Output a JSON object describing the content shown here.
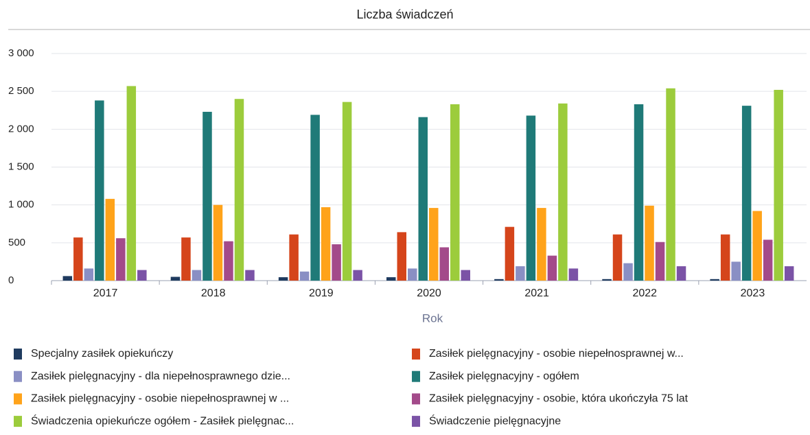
{
  "chart_data": {
    "type": "bar",
    "title": "Liczba świadczeń",
    "x_label": "Rok",
    "categories": [
      "2017",
      "2018",
      "2019",
      "2020",
      "2021",
      "2022",
      "2023"
    ],
    "series": [
      {
        "name": "Specjalny zasiłek opiekuńczy",
        "color": "#1f3b5f",
        "values": [
          60,
          50,
          45,
          45,
          20,
          20,
          20
        ]
      },
      {
        "name": "Zasiłek pielęgnacyjny -  osobie niepełnosprawnej w...",
        "color": "#d5451b",
        "values": [
          570,
          570,
          610,
          640,
          710,
          610,
          610
        ]
      },
      {
        "name": "Zasiłek pielęgnacyjny - dla niepełnosprawnego dzie...",
        "color": "#8a8fc4",
        "values": [
          160,
          140,
          120,
          160,
          190,
          230,
          250
        ]
      },
      {
        "name": "Zasiłek pielęgnacyjny - ogółem",
        "color": "#1f7a78",
        "values": [
          2380,
          2230,
          2190,
          2160,
          2180,
          2330,
          2310
        ]
      },
      {
        "name": "Zasiłek pielęgnacyjny - osobie niepełnosprawnej w ...",
        "color": "#ffa31a",
        "values": [
          1080,
          1000,
          970,
          960,
          960,
          990,
          920
        ]
      },
      {
        "name": "Zasiłek pielęgnacyjny - osobie, która ukończyła 75 lat",
        "color": "#a34a8a",
        "values": [
          560,
          520,
          480,
          440,
          330,
          510,
          540
        ]
      },
      {
        "name": "Świadczenia opiekuńcze ogółem - Zasiłek pielęgnac...",
        "color": "#9ccc3c",
        "values": [
          2570,
          2400,
          2360,
          2330,
          2340,
          2540,
          2520
        ]
      },
      {
        "name": "Świadczenie pielęgnacyjne",
        "color": "#7b53a6",
        "values": [
          140,
          140,
          140,
          140,
          160,
          190,
          190
        ]
      }
    ],
    "ylim": [
      0,
      3000
    ],
    "yticks": [
      0,
      500,
      {
        "value": 1000,
        "label": "1 000"
      },
      {
        "value": 1500,
        "label": "1 500"
      },
      {
        "value": 2000,
        "label": "2 000"
      },
      {
        "value": 2500,
        "label": "2 500"
      },
      {
        "value": 3000,
        "label": "3 000"
      }
    ],
    "grid": true
  }
}
